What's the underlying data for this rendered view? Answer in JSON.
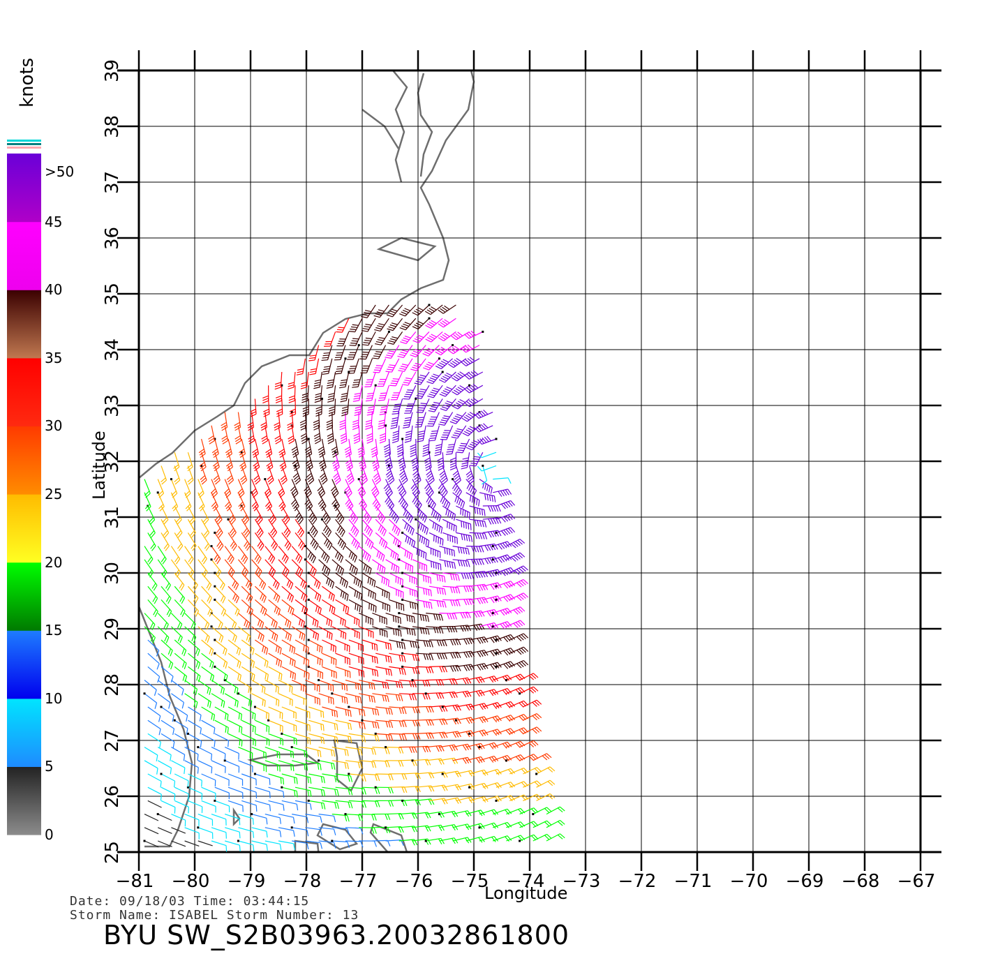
{
  "map": {
    "lon_ticks": [
      "−81",
      "−80",
      "−79",
      "−78",
      "−77",
      "−76",
      "−75",
      "−74",
      "−73",
      "−72",
      "−71",
      "−70",
      "−69",
      "−68",
      "−67"
    ],
    "lat_ticks": [
      "25",
      "26",
      "27",
      "28",
      "29",
      "30",
      "31",
      "32",
      "33",
      "34",
      "35",
      "36",
      "37",
      "38",
      "39"
    ],
    "xlabel": "Longitude",
    "ylabel": "Latitude",
    "lon_range": [
      -81,
      -67
    ],
    "lat_range": [
      25,
      39
    ],
    "grid": true,
    "land_outline_color": "#6e6e6e"
  },
  "colorbar": {
    "units": "knots",
    "labels": [
      ">50",
      "45",
      "40",
      "35",
      "30",
      "25",
      "20",
      "15",
      "10",
      "5",
      "0"
    ],
    "scale": [
      {
        "from": 0,
        "to": 5,
        "color_top": "#222222",
        "color_bottom": "#8c8c8c"
      },
      {
        "from": 5,
        "to": 10,
        "color_top": "#00e5ff",
        "color_bottom": "#1e8bff"
      },
      {
        "from": 10,
        "to": 15,
        "color_top": "#1e7dff",
        "color_bottom": "#0000ee"
      },
      {
        "from": 15,
        "to": 20,
        "color_top": "#00ff00",
        "color_bottom": "#007a00"
      },
      {
        "from": 20,
        "to": 25,
        "color_top": "#ffbb00",
        "color_bottom": "#ffff22"
      },
      {
        "from": 25,
        "to": 30,
        "color_top": "#ff3a00",
        "color_bottom": "#ff8c00"
      },
      {
        "from": 30,
        "to": 35,
        "color_top": "#ff0000",
        "color_bottom": "#ff2a10"
      },
      {
        "from": 35,
        "to": 40,
        "color_top": "#3a0000",
        "color_bottom": "#c07850"
      },
      {
        "from": 40,
        "to": 45,
        "color_top": "#ff00ff",
        "color_bottom": "#ee00ee"
      },
      {
        "from": 45,
        "to": 50,
        "color_top": "#6a00d8",
        "color_bottom": "#b000c8"
      }
    ]
  },
  "storm": {
    "center_lon": -74.6,
    "center_lat": 31.9
  },
  "info": {
    "date_line": "Date: 09/18/03   Time: 03:44:15",
    "storm_line": "Storm Name: ISABEL   Storm Number: 13",
    "product": "BYU  SW_S2B03963.20032861800"
  }
}
